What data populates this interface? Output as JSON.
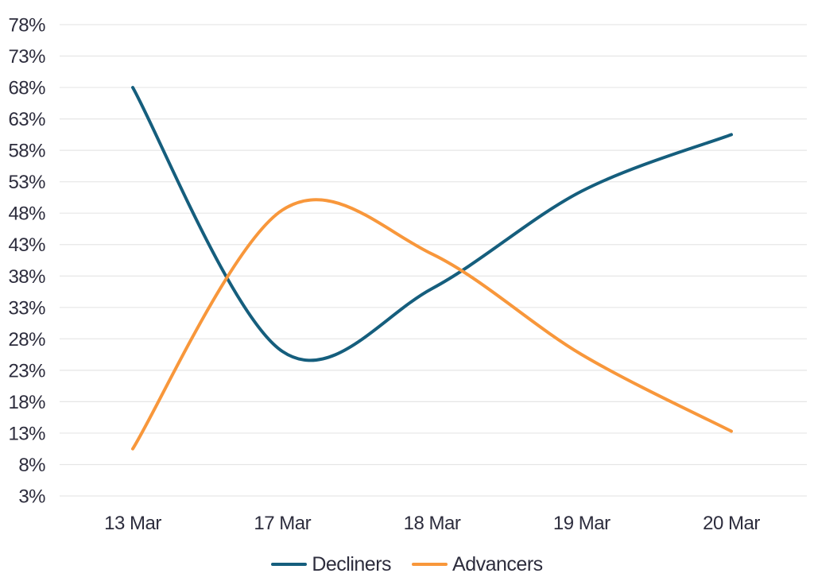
{
  "colors": {
    "decliners_line": "#155E7D",
    "advancers_line": "#F8973B",
    "grid_line": "#E6E6E6",
    "label_text": "#2D2D3D",
    "background": "#FFFFFF"
  },
  "chart_data": {
    "type": "line",
    "title": "",
    "xlabel": "",
    "ylabel": "",
    "categories": [
      "13 Mar",
      "17 Mar",
      "18 Mar",
      "19 Mar",
      "20 Mar"
    ],
    "series": [
      {
        "name": "Decliners",
        "color": "#155E7D",
        "values": [
          68,
          26,
          36,
          51.5,
          60.5
        ]
      },
      {
        "name": "Advancers",
        "color": "#F8973B",
        "values": [
          10.5,
          48.5,
          41.5,
          25.5,
          13.3
        ]
      }
    ],
    "ylim": [
      3,
      78
    ],
    "y_tick_step": 5,
    "y_tick_labels": [
      "78%",
      "73%",
      "68%",
      "63%",
      "58%",
      "53%",
      "48%",
      "43%",
      "38%",
      "33%",
      "28%",
      "23%",
      "18%",
      "13%",
      "8%",
      "3%"
    ],
    "y_tick_suffix": "%",
    "curve": "smooth",
    "grid": "horizontal-only",
    "legend_position": "bottom-center"
  },
  "legend": {
    "items": [
      {
        "label": "Decliners"
      },
      {
        "label": "Advancers"
      }
    ]
  }
}
